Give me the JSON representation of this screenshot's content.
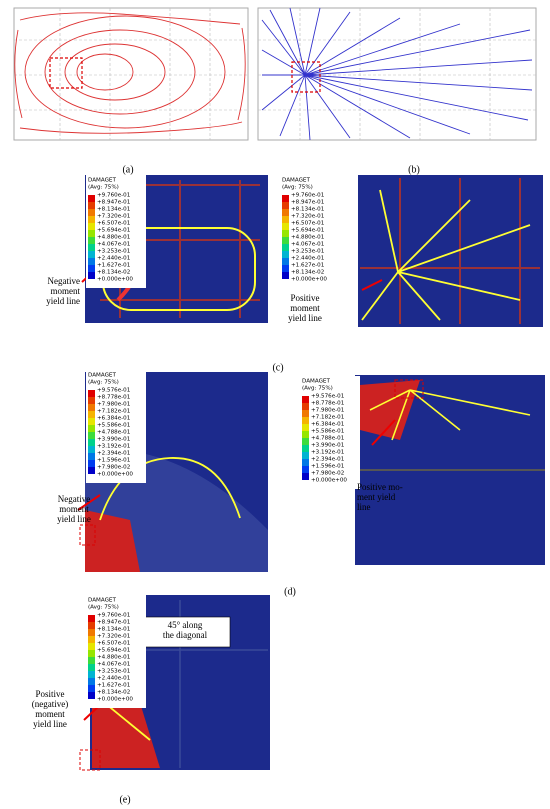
{
  "labels": [
    "(a)",
    "(b)",
    "(c)",
    "(d)",
    "(e)"
  ],
  "legends": [
    {
      "title": "DAMAGET",
      "subtitle": "(Avg: 75%)",
      "values": [
        "+9.760e-01",
        "+8.947e-01",
        "+8.134e-01",
        "+7.320e-01",
        "+6.507e-01",
        "+5.694e-01",
        "+4.880e-01",
        "+4.067e-01",
        "+3.253e-01",
        "+2.440e-01",
        "+1.627e-01",
        "+8.134e-02",
        "+0.000e+00"
      ]
    },
    {
      "title": "DAMAGET",
      "subtitle": "(Avg: 75%)",
      "values": [
        "+9.760e-01",
        "+8.947e-01",
        "+8.134e-01",
        "+7.320e-01",
        "+6.507e-01",
        "+5.694e-01",
        "+4.880e-01",
        "+4.067e-01",
        "+3.253e-01",
        "+2.440e-01",
        "+1.627e-01",
        "+8.134e-02",
        "+0.000e+00"
      ]
    },
    {
      "title": "DAMAGET",
      "subtitle": "(Avg: 75%)",
      "values": [
        "+9.576e-01",
        "+8.778e-01",
        "+7.980e-01",
        "+7.182e-01",
        "+6.384e-01",
        "+5.586e-01",
        "+4.788e-01",
        "+3.990e-01",
        "+3.192e-01",
        "+2.394e-01",
        "+1.596e-01",
        "+7.980e-02",
        "+0.000e+00"
      ]
    },
    {
      "title": "DAMAGET",
      "subtitle": "(Avg: 75%)",
      "values": [
        "+9.576e-01",
        "+8.778e-01",
        "+7.980e-01",
        "+7.182e-01",
        "+6.384e-01",
        "+5.586e-01",
        "+4.788e-01",
        "+3.990e-01",
        "+3.192e-01",
        "+2.394e-01",
        "+1.596e-01",
        "+7.980e-02",
        "+0.000e+00"
      ]
    },
    {
      "title": "DAMAGET",
      "subtitle": "(Avg: 75%)",
      "values": [
        "+9.760e-01",
        "+8.947e-01",
        "+8.134e-01",
        "+7.320e-01",
        "+6.507e-01",
        "+5.694e-01",
        "+4.880e-01",
        "+4.067e-01",
        "+3.253e-01",
        "+2.440e-01",
        "+1.627e-01",
        "+8.134e-02",
        "+0.000e+00"
      ]
    }
  ],
  "annotations": [
    {
      "lines": [
        "Negative",
        "moment",
        "yield line"
      ]
    },
    {
      "lines": [
        "Positive",
        "moment",
        "yield line"
      ]
    },
    {
      "lines": [
        "Negative",
        "moment",
        "yield line"
      ]
    },
    {
      "lines": [
        "Positive mo-",
        "ment yield",
        "line"
      ]
    },
    {
      "lines": [
        "45° along",
        "the diagonal"
      ]
    },
    {
      "lines": [
        "Positive",
        "(negative)",
        "moment",
        "yield line"
      ]
    }
  ]
}
